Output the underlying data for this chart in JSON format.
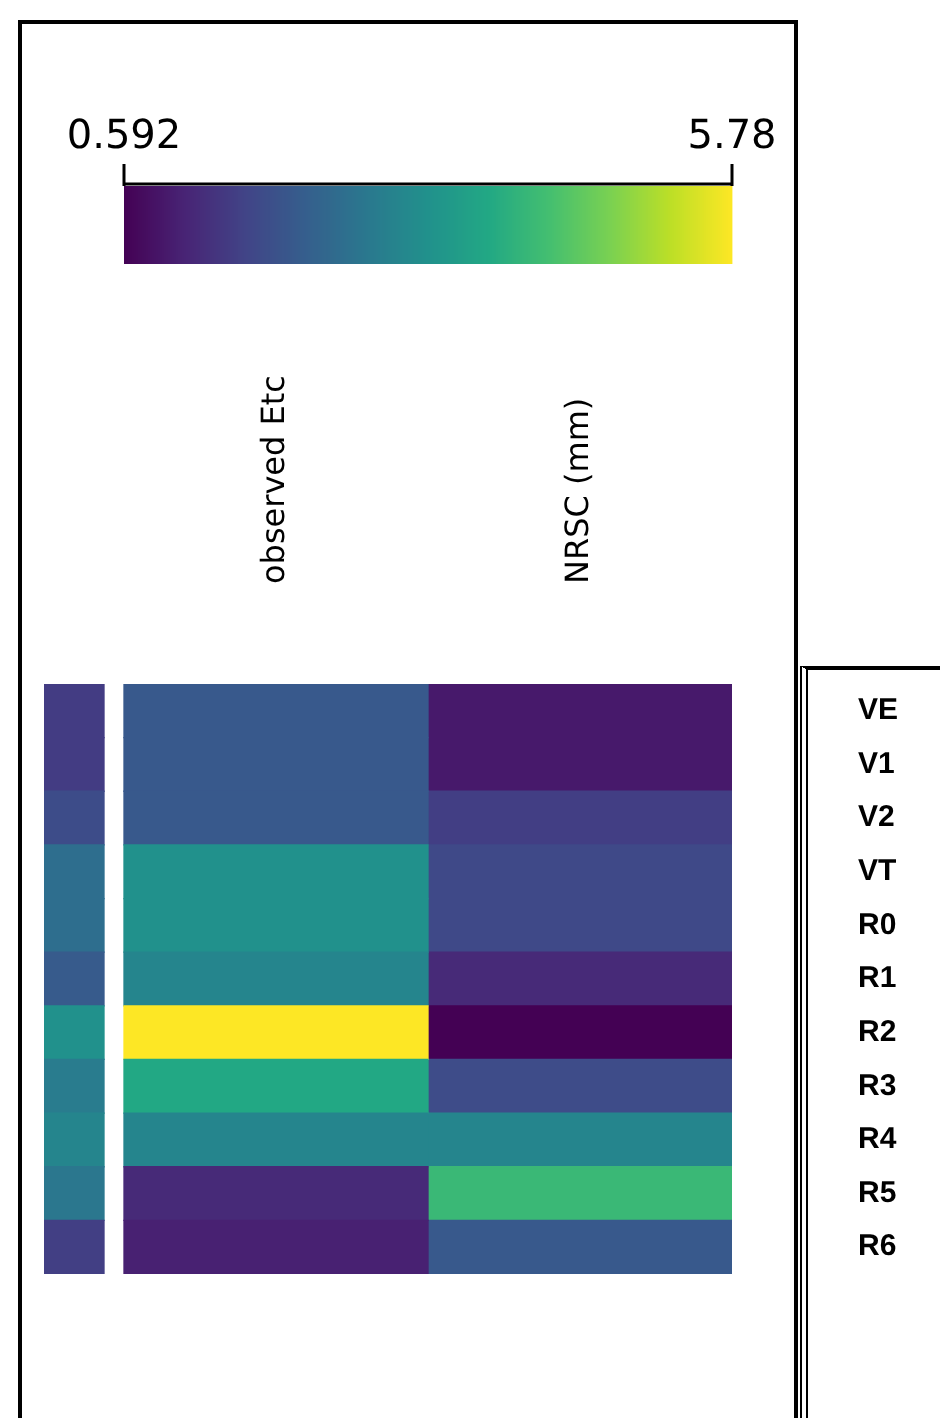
{
  "chart_data": {
    "type": "heatmap",
    "categories": [
      null,
      "observed Etc",
      "NRSC (mm)"
    ],
    "y_categories": [
      "VE",
      "V1",
      "V2",
      "VT",
      "R0",
      "R1",
      "R2",
      "R3",
      "R4",
      "R5",
      "R6"
    ],
    "clim": [
      0.592,
      5.78
    ],
    "cticks": [
      0.592,
      5.78
    ],
    "cells": [
      [
        1.5,
        2.04,
        0.95
      ],
      [
        1.5,
        2.04,
        0.95
      ],
      [
        1.79,
        2.04,
        1.53
      ],
      [
        2.46,
        3.19,
        1.73
      ],
      [
        2.46,
        3.19,
        1.73
      ],
      [
        2.07,
        2.93,
        1.21
      ],
      [
        3.19,
        5.78,
        0.592
      ],
      [
        2.74,
        3.7,
        1.78
      ],
      [
        2.93,
        2.93,
        2.93
      ],
      [
        2.64,
        1.21,
        4.07
      ],
      [
        1.55,
        1.06,
        2.04
      ]
    ]
  }
}
